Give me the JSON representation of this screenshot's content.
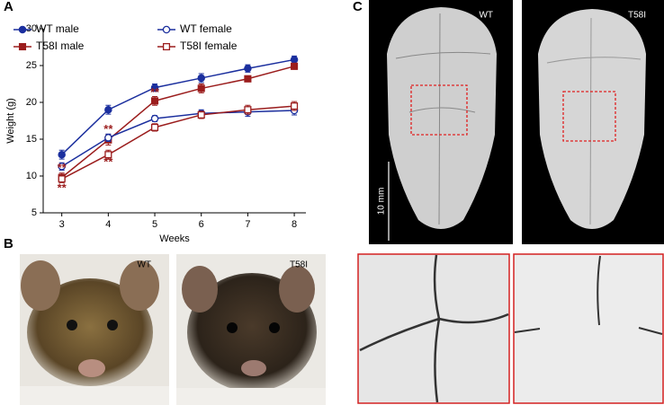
{
  "chart_data": {
    "type": "line",
    "x_label": "Weeks",
    "y_label": "Weight (g)",
    "x": [
      3,
      4,
      5,
      6,
      7,
      8
    ],
    "xlim": [
      2.6,
      8.25
    ],
    "xticks": [
      3,
      4,
      5,
      6,
      7,
      8
    ],
    "ylim": [
      5,
      30
    ],
    "yticks": [
      5,
      10,
      15,
      20,
      25,
      30
    ],
    "series": [
      {
        "name": "WT male",
        "color": "#1b2f9e",
        "marker": "circle",
        "filled": true,
        "values": [
          12.9,
          19.0,
          22.0,
          23.3,
          24.6,
          25.8
        ],
        "errors": [
          0.6,
          0.6,
          0.5,
          0.6,
          0.5,
          0.5
        ]
      },
      {
        "name": "T58I male",
        "color": "#9b1d1d",
        "marker": "square",
        "filled": true,
        "values": [
          9.8,
          14.9,
          20.2,
          21.9,
          23.2,
          24.9
        ],
        "errors": [
          0.6,
          0.7,
          0.6,
          0.6,
          0.4,
          0.4
        ]
      },
      {
        "name": "WT female",
        "color": "#1b2f9e",
        "marker": "circle",
        "filled": false,
        "values": [
          11.3,
          15.2,
          17.8,
          18.5,
          18.7,
          18.9
        ],
        "errors": [
          0.5,
          0.5,
          0.4,
          0.5,
          0.6,
          0.6
        ]
      },
      {
        "name": "T58I female",
        "color": "#9b1d1d",
        "marker": "square",
        "filled": false,
        "values": [
          9.6,
          12.9,
          16.6,
          18.3,
          19.0,
          19.5
        ],
        "errors": [
          0.5,
          0.6,
          0.5,
          0.5,
          0.6,
          0.6
        ]
      }
    ],
    "annotations": [
      {
        "text": "**",
        "x": 3,
        "y": 11.0
      },
      {
        "text": "**",
        "x": 3,
        "y": 8.3
      },
      {
        "text": "**",
        "x": 4,
        "y": 16.3
      },
      {
        "text": "**",
        "x": 4,
        "y": 11.8
      },
      {
        "text": "**",
        "x": 5,
        "y": 21.3
      }
    ]
  },
  "panels": {
    "a": "A",
    "b": "B",
    "c": "C"
  },
  "photos": {
    "mouse_wt": "WT",
    "mouse_t58i": "T58I",
    "skull_wt": "WT",
    "skull_t58i": "T58I"
  },
  "scale_bar": "10 mm"
}
